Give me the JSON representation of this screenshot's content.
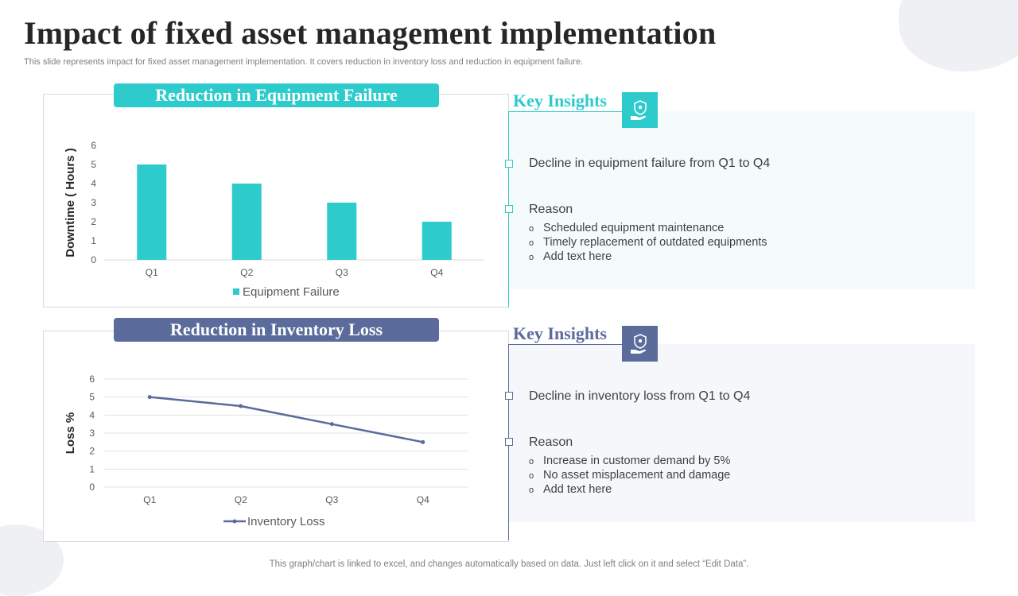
{
  "page": {
    "title": "Impact of fixed asset management implementation",
    "subtitle": "This slide represents impact for fixed asset management implementation. It covers reduction in inventory loss and reduction in equipment failure.",
    "footer": "This graph/chart is linked to excel, and changes automatically based on data. Just left click on it and select “Edit Data”."
  },
  "colors": {
    "teal": "#2ecbcd",
    "slate": "#5b6b9b",
    "panel_teal": "#f5fbfb",
    "panel_slate": "#f6f7fa"
  },
  "section1": {
    "header": "Reduction in Equipment Failure",
    "insights_label": "Key Insights",
    "icon": "hand-holding-shield-icon",
    "point1": "Decline in equipment failure from Q1 to Q4",
    "reason_label": "Reason",
    "bullet_symbol": "o",
    "bullets": [
      "Scheduled equipment maintenance",
      "Timely replacement of outdated equipments",
      "Add text here"
    ]
  },
  "section2": {
    "header": "Reduction in Inventory Loss",
    "insights_label": "Key Insights",
    "icon": "hand-holding-shield-icon",
    "point1": "Decline in inventory  loss from Q1 to Q4",
    "reason_label": "Reason",
    "bullet_symbol": "o",
    "bullets": [
      "Increase in customer demand by 5%",
      "No asset misplacement and damage",
      "Add text here"
    ]
  },
  "chart_data": [
    {
      "type": "bar",
      "categories": [
        "Q1",
        "Q2",
        "Q3",
        "Q4"
      ],
      "series": [
        {
          "name": "Equipment Failure",
          "values": [
            5,
            4,
            3,
            2
          ]
        }
      ],
      "ylabel": "Downtime ( Hours )",
      "ylim": [
        0,
        6
      ],
      "yticks": [
        0,
        1,
        2,
        3,
        4,
        5,
        6
      ],
      "grid": false,
      "legend": "bottom"
    },
    {
      "type": "line",
      "categories": [
        "Q1",
        "Q2",
        "Q3",
        "Q4"
      ],
      "series": [
        {
          "name": "Inventory Loss",
          "values": [
            5,
            4.5,
            3.5,
            2.5
          ]
        }
      ],
      "ylabel": "Loss %",
      "ylim": [
        0,
        6
      ],
      "yticks": [
        0,
        1,
        2,
        3,
        4,
        5,
        6
      ],
      "grid": true,
      "legend": "bottom"
    }
  ]
}
